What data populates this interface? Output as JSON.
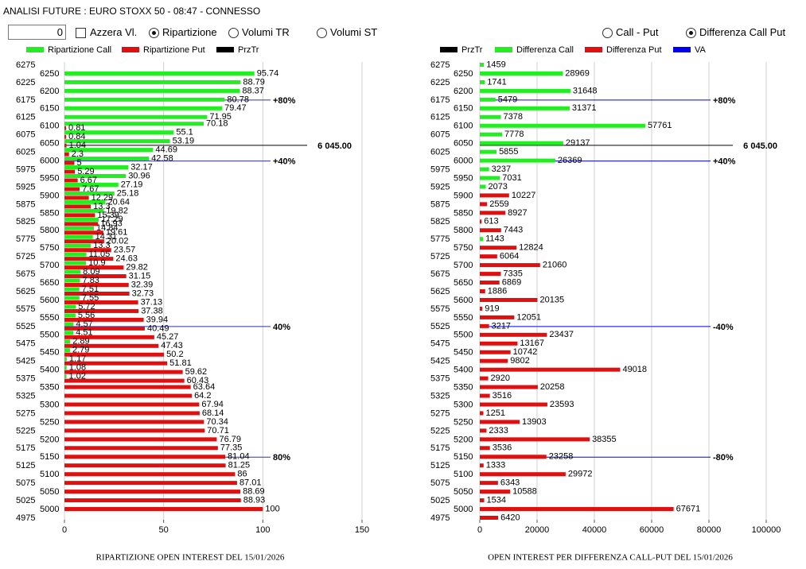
{
  "header": {
    "title": "ANALISI FUTURE : EURO STOXX 50 - 08:47 - CONNESSO",
    "input_value": "0",
    "checkbox": "Azzera Vl.",
    "radios_left": [
      {
        "label": "Ripartizione",
        "checked": true
      },
      {
        "label": "Volumi TR",
        "checked": false
      },
      {
        "label": "Volumi ST",
        "checked": false
      }
    ],
    "radios_right": [
      {
        "label": "Call - Put",
        "checked": false
      },
      {
        "label": "Differenza Call Put",
        "checked": true
      }
    ]
  },
  "chart_data": [
    {
      "type": "bar",
      "orientation": "horizontal",
      "title": "RIPARTIZIONE OPEN INTEREST DEL 15/01/2026",
      "categories": [
        6275,
        6250,
        6225,
        6200,
        6175,
        6150,
        6125,
        6100,
        6075,
        6050,
        6025,
        6000,
        5975,
        5950,
        5925,
        5900,
        5875,
        5850,
        5825,
        5800,
        5775,
        5750,
        5725,
        5700,
        5675,
        5650,
        5625,
        5600,
        5575,
        5550,
        5525,
        5500,
        5475,
        5450,
        5425,
        5400,
        5375,
        5350,
        5325,
        5300,
        5275,
        5250,
        5225,
        5200,
        5175,
        5150,
        5125,
        5100,
        5075,
        5050,
        5025,
        5000,
        4975
      ],
      "series": [
        {
          "name": "Ripartizione Call",
          "color": "#22ee22",
          "values": [
            null,
            95.74,
            88.79,
            88.37,
            80.78,
            79.47,
            71.95,
            70.18,
            55.1,
            53.19,
            44.69,
            42.58,
            32.17,
            30.96,
            27.19,
            25.18,
            20.64,
            19.82,
            17.29,
            14.84,
            14.31,
            13.3,
            11.05,
            10.9,
            8.09,
            7.83,
            7.51,
            7.55,
            5.72,
            5.56,
            4.57,
            4.51,
            2.89,
            2.79,
            1.17,
            1.08,
            1.02,
            null,
            null,
            null,
            null,
            null,
            null,
            null,
            null,
            null,
            null,
            null,
            null,
            null,
            null,
            null,
            null
          ]
        },
        {
          "name": "Ripartizione Put",
          "color": "#e01010",
          "values": [
            null,
            null,
            null,
            null,
            null,
            null,
            null,
            0.81,
            0.84,
            1.04,
            2.3,
            5,
            5.29,
            6.67,
            7.67,
            12.29,
            13.3,
            15.39,
            16.93,
            19.61,
            20.02,
            23.57,
            24.63,
            29.82,
            31.15,
            32.39,
            32.73,
            37.13,
            37.38,
            39.94,
            40.49,
            45.27,
            47.43,
            50.2,
            51.81,
            59.62,
            60.43,
            63.64,
            64.2,
            67.94,
            68.14,
            70.34,
            70.71,
            76.79,
            77.35,
            81.04,
            81.25,
            86,
            87.01,
            88.69,
            88.93,
            100,
            null
          ]
        }
      ],
      "reference_lines": [
        {
          "name": "PrzTr",
          "color": "#000000",
          "lines": [
            {
              "value": 6045,
              "label": "6 045.00"
            }
          ]
        },
        {
          "color": "#3030b0",
          "lines": [
            {
              "value": 6175,
              "label": "+80%"
            },
            {
              "value": 6000,
              "label": "+40%"
            },
            {
              "value": 5525,
              "label": "40%"
            },
            {
              "value": 5150,
              "label": "80%"
            }
          ]
        }
      ],
      "xlim": [
        0,
        150
      ],
      "xticks": [
        0,
        50,
        100,
        150
      ],
      "grid": true
    },
    {
      "type": "bar",
      "orientation": "horizontal",
      "title": "OPEN INTEREST PER DIFFERENZA CALL-PUT  DEL 15/01/2026",
      "categories": [
        6275,
        6250,
        6225,
        6200,
        6175,
        6150,
        6125,
        6100,
        6075,
        6050,
        6025,
        6000,
        5975,
        5950,
        5925,
        5900,
        5875,
        5850,
        5825,
        5800,
        5775,
        5750,
        5725,
        5700,
        5675,
        5650,
        5625,
        5600,
        5575,
        5550,
        5525,
        5500,
        5475,
        5450,
        5425,
        5400,
        5375,
        5350,
        5325,
        5300,
        5275,
        5250,
        5225,
        5200,
        5175,
        5150,
        5125,
        5100,
        5075,
        5050,
        5025,
        5000,
        4975
      ],
      "series": [
        {
          "name": "Differenza Call",
          "color": "#22ee22",
          "values": [
            1459,
            28969,
            1741,
            31648,
            5479,
            31371,
            7378,
            57761,
            7778,
            29137,
            5855,
            26369,
            3237,
            7031,
            2073,
            null,
            null,
            null,
            null,
            null,
            1143,
            null,
            null,
            null,
            null,
            null,
            null,
            null,
            null,
            null,
            null,
            null,
            null,
            null,
            null,
            null,
            null,
            null,
            null,
            null,
            null,
            null,
            null,
            null,
            null,
            null,
            null,
            null,
            null,
            null,
            null,
            null,
            null
          ]
        },
        {
          "name": "Differenza Put",
          "color": "#e01010",
          "values": [
            null,
            null,
            null,
            null,
            null,
            null,
            null,
            null,
            null,
            null,
            null,
            null,
            null,
            null,
            null,
            10227,
            2559,
            8927,
            613,
            7443,
            null,
            12824,
            6064,
            21060,
            7335,
            6869,
            1886,
            20135,
            919,
            12051,
            3217,
            23437,
            13167,
            10742,
            9802,
            49018,
            2920,
            20258,
            3516,
            23593,
            1251,
            13903,
            2333,
            38355,
            3536,
            23258,
            1333,
            29972,
            6343,
            10588,
            1534,
            67671,
            6420
          ]
        }
      ],
      "reference_lines": [
        {
          "name": "PrzTr",
          "color": "#000000",
          "lines": [
            {
              "value": 6045,
              "label": "6 045.00"
            }
          ]
        },
        {
          "name": "VA",
          "color": "#0000ee",
          "lines": [
            {
              "value": 6175,
              "label": "+80%"
            },
            {
              "value": 6000,
              "label": "+40%"
            },
            {
              "value": 5525,
              "label": "-40%"
            },
            {
              "value": 5150,
              "label": "-80%"
            }
          ]
        }
      ],
      "xlim": [
        0,
        100000
      ],
      "xticks": [
        0,
        20000,
        40000,
        60000,
        80000,
        100000
      ],
      "grid": true
    }
  ]
}
